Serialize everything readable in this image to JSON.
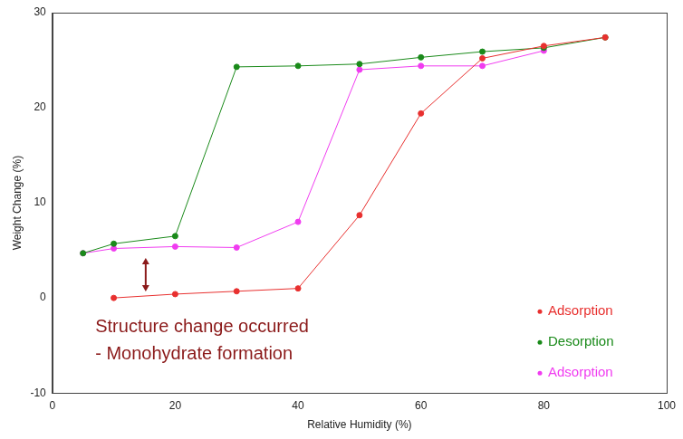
{
  "chart_data": {
    "type": "line",
    "x_label": "Relative Humidity (%)",
    "y_label": "Weight Change (%)",
    "annotation": [
      "Structure change occurred",
      "- Monohydrate formation"
    ],
    "series": [
      {
        "name": "Adsorption",
        "color": "#e8302f",
        "marker": "circle",
        "x": [
          10,
          20,
          30,
          40,
          50,
          60,
          70,
          80,
          90
        ],
        "values": [
          0,
          0.4,
          0.7,
          1.0,
          8.7,
          19.4,
          25.2,
          26.5,
          27.4
        ]
      },
      {
        "name": "Desorption",
        "color": "#1a8a1a",
        "marker": "circle",
        "x": [
          90,
          80,
          70,
          60,
          50,
          40,
          30,
          20,
          10,
          5
        ],
        "values": [
          27.4,
          26.3,
          25.9,
          25.3,
          24.6,
          24.4,
          24.3,
          6.5,
          5.7,
          4.7
        ]
      },
      {
        "name": "Adsorption",
        "color": "#f03cf0",
        "marker": "circle",
        "x": [
          5,
          10,
          20,
          30,
          40,
          50,
          60,
          70,
          80
        ],
        "values": [
          4.7,
          5.2,
          5.4,
          5.3,
          8.0,
          24.0,
          24.4,
          24.4,
          26.0
        ]
      }
    ],
    "xlim": [
      0,
      100
    ],
    "xticks": [
      0,
      20,
      40,
      60,
      80,
      100
    ],
    "ylim": [
      -10,
      30
    ],
    "yticks": [
      -10,
      0,
      10,
      20,
      30
    ],
    "grid": false,
    "legend": "lower right"
  }
}
